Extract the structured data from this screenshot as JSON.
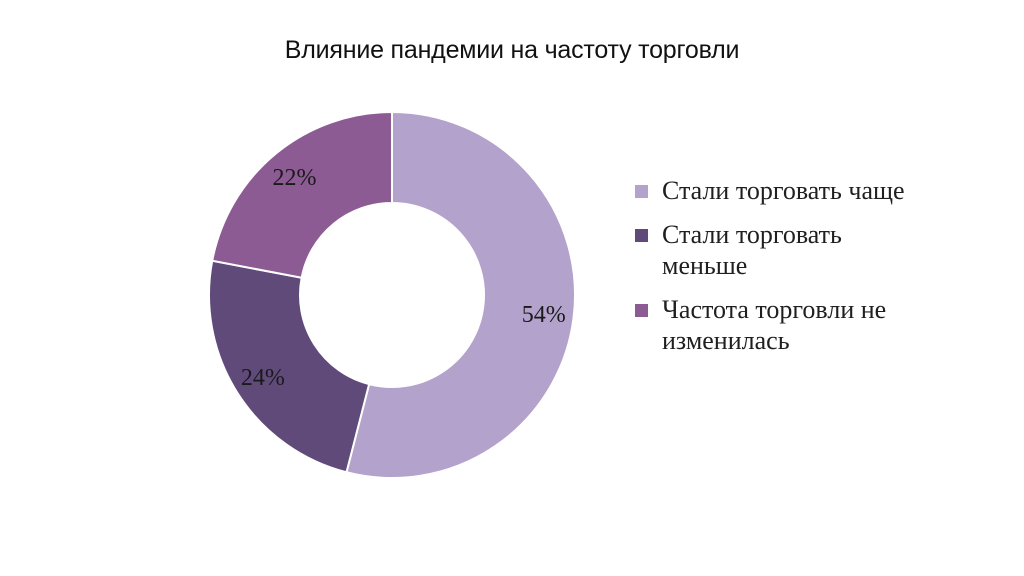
{
  "chart_data": {
    "type": "pie",
    "title": "Влияние пандемии на частоту торговли",
    "categories": [
      "Стали торговать чаще",
      "Стали торговать меньше",
      "Частота торговли не изменилась"
    ],
    "values": [
      54,
      24,
      22
    ],
    "data_labels": [
      "54%",
      "24%",
      "22%"
    ],
    "colors": [
      "#b3a2cb",
      "#5f4a7a",
      "#8d5b93"
    ],
    "donut": true,
    "legend_placement": "right"
  }
}
